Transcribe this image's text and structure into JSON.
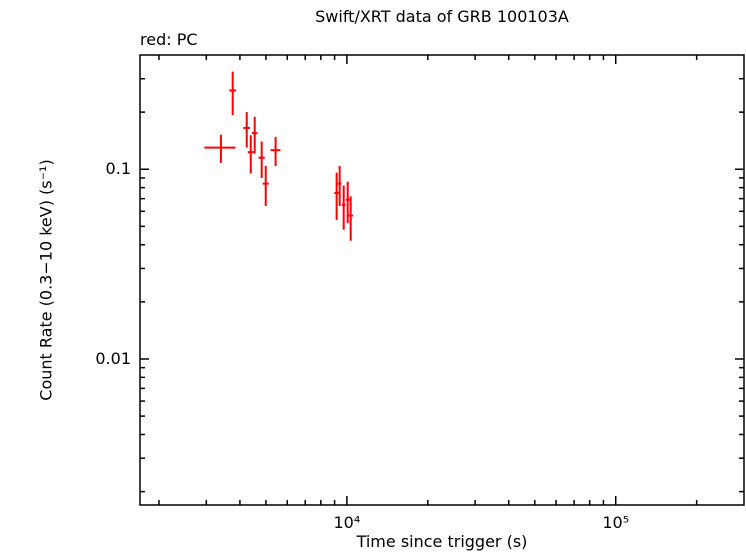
{
  "chart_data": {
    "type": "scatter",
    "title": "Swift/XRT data of GRB 100103A",
    "annotation": "red: PC",
    "xlabel": "Time since trigger (s)",
    "ylabel": "Count Rate (0.3−10 keV) (s⁻¹)",
    "x_scale": "log",
    "y_scale": "log",
    "xlim": [
      1700,
      300000
    ],
    "ylim": [
      0.0017,
      0.4
    ],
    "grid": false,
    "x_ticks": [
      {
        "v": 10000,
        "label": "10⁴"
      },
      {
        "v": 100000,
        "label": "10⁵"
      }
    ],
    "y_ticks": [
      {
        "v": 0.1,
        "label": "0.1"
      },
      {
        "v": 0.01,
        "label": "0.01"
      }
    ],
    "series": [
      {
        "name": "PC",
        "color": "#ff0000",
        "marker": "error-bar-cross",
        "points": [
          {
            "t": 3400,
            "t_err": 450,
            "rate": 0.13,
            "rate_err": 0.022
          },
          {
            "t": 3760,
            "t_err": 110,
            "rate": 0.26,
            "rate_err": 0.067
          },
          {
            "t": 4240,
            "t_err": 120,
            "rate": 0.165,
            "rate_err": 0.035
          },
          {
            "t": 4390,
            "t_err": 110,
            "rate": 0.123,
            "rate_err": 0.028
          },
          {
            "t": 4540,
            "t_err": 110,
            "rate": 0.155,
            "rate_err": 0.034
          },
          {
            "t": 4820,
            "t_err": 130,
            "rate": 0.115,
            "rate_err": 0.025
          },
          {
            "t": 4990,
            "t_err": 130,
            "rate": 0.084,
            "rate_err": 0.02
          },
          {
            "t": 5430,
            "t_err": 230,
            "rate": 0.126,
            "rate_err": 0.022
          },
          {
            "t": 9160,
            "t_err": 180,
            "rate": 0.075,
            "rate_err": 0.021
          },
          {
            "t": 9400,
            "t_err": 150,
            "rate": 0.084,
            "rate_err": 0.02
          },
          {
            "t": 9730,
            "t_err": 150,
            "rate": 0.065,
            "rate_err": 0.017
          },
          {
            "t": 10070,
            "t_err": 160,
            "rate": 0.069,
            "rate_err": 0.017
          },
          {
            "t": 10330,
            "t_err": 200,
            "rate": 0.057,
            "rate_err": 0.015
          }
        ]
      }
    ]
  }
}
